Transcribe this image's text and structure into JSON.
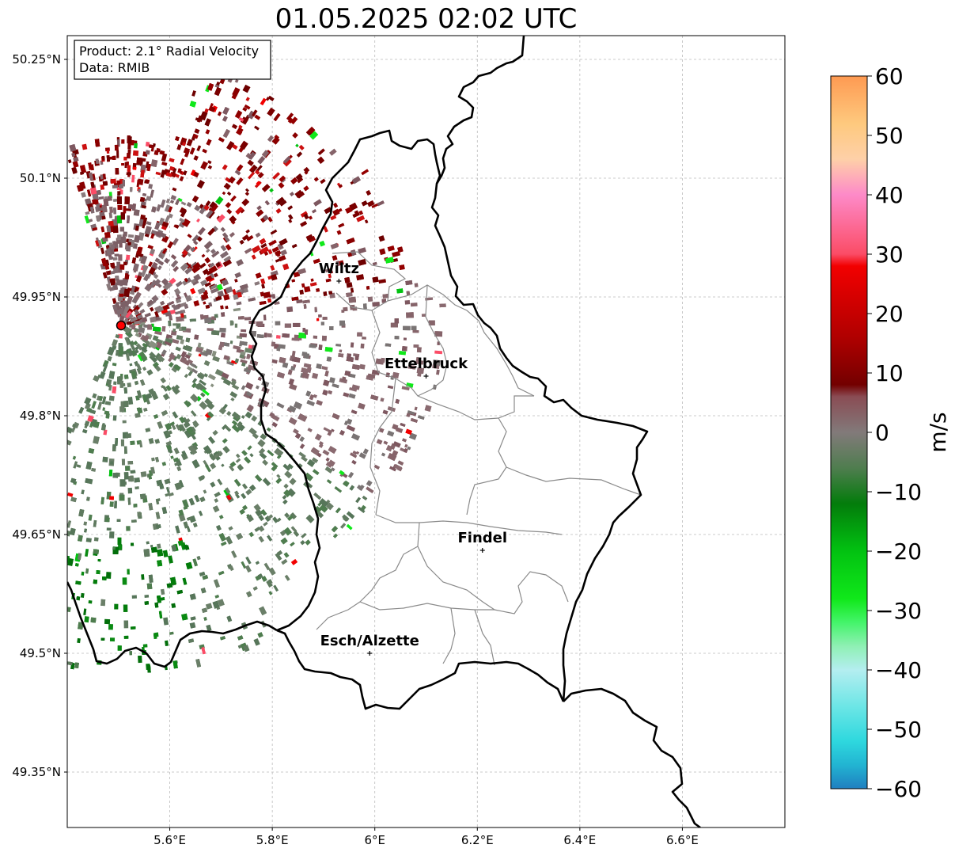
{
  "title": "01.05.2025 02:02 UTC",
  "info_box": {
    "product": "Product: 2.1° Radial Velocity",
    "data": "Data: RMIB"
  },
  "map": {
    "lon_range": [
      5.4,
      6.8
    ],
    "lat_range": [
      49.28,
      50.28
    ],
    "lat_ticks": [
      {
        "value": 50.25,
        "label": "50.25°N"
      },
      {
        "value": 50.1,
        "label": "50.1°N"
      },
      {
        "value": 49.95,
        "label": "49.95°N"
      },
      {
        "value": 49.8,
        "label": "49.8°N"
      },
      {
        "value": 49.65,
        "label": "49.65°N"
      },
      {
        "value": 49.5,
        "label": "49.5°N"
      },
      {
        "value": 49.35,
        "label": "49.35°N"
      }
    ],
    "lon_ticks": [
      {
        "value": 5.6,
        "label": "5.6°E"
      },
      {
        "value": 5.8,
        "label": "5.8°E"
      },
      {
        "value": 6.0,
        "label": "6°E"
      },
      {
        "value": 6.2,
        "label": "6.2°E"
      },
      {
        "value": 6.4,
        "label": "6.4°E"
      },
      {
        "value": 6.6,
        "label": "6.6°E"
      }
    ],
    "radar_site": {
      "lon": 5.505,
      "lat": 49.914
    },
    "cities": [
      {
        "name": "Wiltz",
        "lon": 5.93,
        "lat": 49.97
      },
      {
        "name": "Ettelbruck",
        "lon": 6.1,
        "lat": 49.85
      },
      {
        "name": "Findel",
        "lon": 6.21,
        "lat": 49.63
      },
      {
        "name": "Esch/Alzette",
        "lon": 5.99,
        "lat": 49.5
      }
    ]
  },
  "colorbar": {
    "label": "m/s",
    "min": -60,
    "max": 60,
    "ticks": [
      {
        "value": 60,
        "label": "60"
      },
      {
        "value": 50,
        "label": "50"
      },
      {
        "value": 40,
        "label": "40"
      },
      {
        "value": 30,
        "label": "30"
      },
      {
        "value": 20,
        "label": "20"
      },
      {
        "value": 10,
        "label": "10"
      },
      {
        "value": 0,
        "label": "0"
      },
      {
        "value": -10,
        "label": "−10"
      },
      {
        "value": -20,
        "label": "−20"
      },
      {
        "value": -30,
        "label": "−30"
      },
      {
        "value": -40,
        "label": "−40"
      },
      {
        "value": -50,
        "label": "−50"
      },
      {
        "value": -60,
        "label": "−60"
      }
    ],
    "stops": [
      {
        "v": -60,
        "color": "#1f7fc0"
      },
      {
        "v": -56,
        "color": "#22b4d2"
      },
      {
        "v": -52,
        "color": "#2ed8de"
      },
      {
        "v": -46,
        "color": "#6ee6e6"
      },
      {
        "v": -40,
        "color": "#b4eef0"
      },
      {
        "v": -36,
        "color": "#8ff0b4"
      },
      {
        "v": -32,
        "color": "#44f46a"
      },
      {
        "v": -28,
        "color": "#10e81a"
      },
      {
        "v": -20,
        "color": "#02c211"
      },
      {
        "v": -12,
        "color": "#037c0b"
      },
      {
        "v": -6,
        "color": "#4f7d4f"
      },
      {
        "v": 0,
        "color": "#827a7a"
      },
      {
        "v": 6,
        "color": "#8a4c54"
      },
      {
        "v": 8,
        "color": "#730000"
      },
      {
        "v": 16,
        "color": "#b00000"
      },
      {
        "v": 28,
        "color": "#f20000"
      },
      {
        "v": 30,
        "color": "#fb4c66"
      },
      {
        "v": 40,
        "color": "#fd8ac8"
      },
      {
        "v": 46,
        "color": "#fed0a8"
      },
      {
        "v": 52,
        "color": "#fec97e"
      },
      {
        "v": 60,
        "color": "#fe9a52"
      }
    ]
  }
}
